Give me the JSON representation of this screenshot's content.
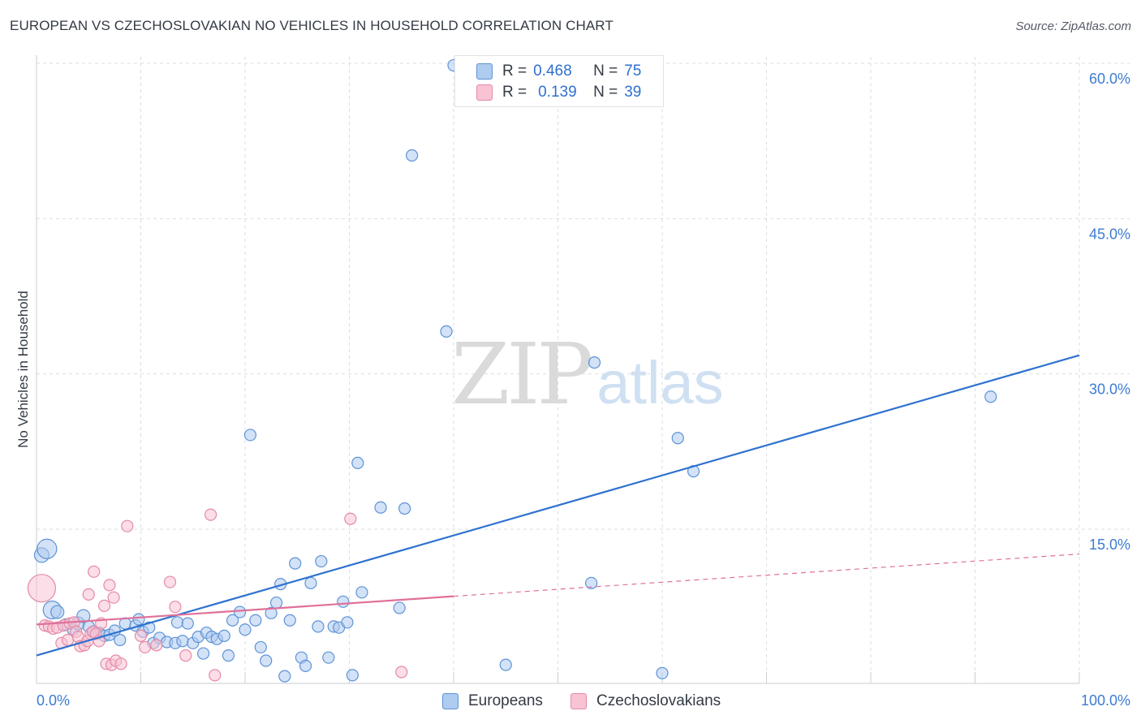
{
  "title": "EUROPEAN VS CZECHOSLOVAKIAN NO VEHICLES IN HOUSEHOLD CORRELATION CHART",
  "source": "Source: ZipAtlas.com",
  "watermark": {
    "zip": "ZIP",
    "atlas": "atlas"
  },
  "legend": {
    "series1": {
      "r_label": "R =",
      "r_value": "0.468",
      "n_label": "N =",
      "n_value": "75"
    },
    "series2": {
      "r_label": "R =",
      "r_value": "0.139",
      "n_label": "N =",
      "n_value": "39"
    }
  },
  "bottom_legend": {
    "series1": "Europeans",
    "series2": "Czechoslovakians"
  },
  "colors": {
    "blue_fill": "#aecbf0",
    "blue_stroke": "#5e93d6",
    "blue_line": "#2f72d0",
    "pink_fill": "#f8c3d3",
    "pink_stroke": "#e68aa6",
    "pink_line": "#e0709a",
    "grid": "#d9dde3",
    "tick_label": "#3d7bd4"
  },
  "chart_data": {
    "type": "scatter",
    "title": "EUROPEAN VS CZECHOSLOVAKIAN NO VEHICLES IN HOUSEHOLD CORRELATION CHART",
    "xlabel": "",
    "ylabel": "No Vehicles in Household",
    "xlim": [
      0,
      100
    ],
    "ylim": [
      0,
      63
    ],
    "x_tick_labels": [
      "0.0%",
      "100.0%"
    ],
    "y_ticks": [
      15,
      30,
      45,
      60
    ],
    "y_tick_labels": [
      "15.0%",
      "30.0%",
      "45.0%",
      "60.0%"
    ],
    "x_grid_ticks": [
      10,
      20,
      30,
      40,
      50,
      60,
      70,
      80,
      90,
      100
    ],
    "series": [
      {
        "name": "Europeans",
        "r": 0.468,
        "n": 75,
        "trend": {
          "x0": 0,
          "y0": 2.8,
          "x1": 100,
          "y1": 31.8,
          "dashed_from": null
        },
        "points": [
          [
            0.5,
            12.5,
            18
          ],
          [
            1.0,
            13.1,
            24
          ],
          [
            1.5,
            7.2,
            22
          ],
          [
            2.0,
            7.0,
            16
          ],
          [
            2.8,
            5.8,
            14
          ],
          [
            3.5,
            5.3,
            14
          ],
          [
            4.0,
            5.9,
            16
          ],
          [
            4.5,
            6.6,
            16
          ],
          [
            5.0,
            5.6,
            14
          ],
          [
            5.5,
            5.1,
            14
          ],
          [
            6.0,
            5.0,
            14
          ],
          [
            6.5,
            4.7,
            14
          ],
          [
            7.0,
            4.8,
            14
          ],
          [
            7.5,
            5.2,
            14
          ],
          [
            8.0,
            4.3,
            14
          ],
          [
            8.5,
            5.9,
            14
          ],
          [
            9.5,
            5.7,
            14
          ],
          [
            9.8,
            6.3,
            14
          ],
          [
            10.2,
            5.1,
            14
          ],
          [
            10.8,
            5.5,
            14
          ],
          [
            11.2,
            4.0,
            14
          ],
          [
            11.8,
            4.5,
            14
          ],
          [
            12.5,
            4.1,
            14
          ],
          [
            13.3,
            4.0,
            14
          ],
          [
            13.5,
            6.0,
            14
          ],
          [
            14.0,
            4.2,
            14
          ],
          [
            14.5,
            5.9,
            14
          ],
          [
            15.0,
            4.0,
            14
          ],
          [
            15.5,
            4.6,
            14
          ],
          [
            16.0,
            3.0,
            14
          ],
          [
            16.3,
            5.0,
            14
          ],
          [
            16.8,
            4.6,
            14
          ],
          [
            17.3,
            4.4,
            14
          ],
          [
            18.0,
            4.7,
            14
          ],
          [
            18.4,
            2.8,
            14
          ],
          [
            18.8,
            6.2,
            14
          ],
          [
            19.5,
            7.0,
            14
          ],
          [
            20.0,
            5.3,
            14
          ],
          [
            20.5,
            24.1,
            14
          ],
          [
            21.0,
            6.2,
            14
          ],
          [
            21.5,
            3.6,
            14
          ],
          [
            22.0,
            2.3,
            14
          ],
          [
            22.5,
            6.9,
            14
          ],
          [
            23.0,
            7.9,
            14
          ],
          [
            23.4,
            9.7,
            14
          ],
          [
            23.8,
            0.8,
            14
          ],
          [
            24.3,
            6.2,
            14
          ],
          [
            24.8,
            11.7,
            14
          ],
          [
            25.4,
            2.6,
            14
          ],
          [
            25.8,
            1.8,
            14
          ],
          [
            26.3,
            9.8,
            14
          ],
          [
            27.0,
            5.6,
            14
          ],
          [
            27.3,
            11.9,
            14
          ],
          [
            28.0,
            2.6,
            14
          ],
          [
            28.5,
            5.6,
            14
          ],
          [
            29.0,
            5.5,
            14
          ],
          [
            29.4,
            8.0,
            14
          ],
          [
            29.8,
            6.0,
            14
          ],
          [
            30.3,
            0.9,
            14
          ],
          [
            30.8,
            21.4,
            14
          ],
          [
            31.2,
            8.9,
            14
          ],
          [
            33.0,
            17.1,
            14
          ],
          [
            34.8,
            7.4,
            14
          ],
          [
            35.3,
            17.0,
            14
          ],
          [
            36.0,
            51.1,
            14
          ],
          [
            39.3,
            34.1,
            14
          ],
          [
            40.0,
            59.8,
            14
          ],
          [
            45.0,
            1.9,
            14
          ],
          [
            53.2,
            9.8,
            14
          ],
          [
            53.5,
            31.1,
            14
          ],
          [
            60.0,
            1.1,
            14
          ],
          [
            61.5,
            23.8,
            14
          ],
          [
            63.0,
            20.6,
            14
          ],
          [
            91.5,
            27.8,
            14
          ]
        ]
      },
      {
        "name": "Czechoslovakians",
        "r": 0.139,
        "n": 39,
        "trend": {
          "x0": 0,
          "y0": 5.8,
          "x1": 100,
          "y1": 12.6,
          "dashed_from": 40
        },
        "points": [
          [
            0.5,
            9.3,
            34
          ],
          [
            0.8,
            5.7,
            14
          ],
          [
            1.2,
            5.6,
            14
          ],
          [
            1.6,
            5.4,
            14
          ],
          [
            2.0,
            5.5,
            14
          ],
          [
            2.4,
            4.0,
            14
          ],
          [
            2.6,
            5.7,
            14
          ],
          [
            3.0,
            4.3,
            14
          ],
          [
            3.2,
            5.9,
            14
          ],
          [
            3.6,
            6.0,
            14
          ],
          [
            3.8,
            5.1,
            14
          ],
          [
            4.0,
            4.6,
            14
          ],
          [
            4.2,
            3.7,
            14
          ],
          [
            4.6,
            3.8,
            14
          ],
          [
            4.9,
            4.2,
            14
          ],
          [
            5.0,
            8.7,
            14
          ],
          [
            5.2,
            4.9,
            14
          ],
          [
            5.4,
            5.1,
            14
          ],
          [
            5.5,
            10.9,
            14
          ],
          [
            5.7,
            4.9,
            14
          ],
          [
            6.0,
            4.2,
            14
          ],
          [
            6.2,
            5.9,
            14
          ],
          [
            6.5,
            7.6,
            14
          ],
          [
            6.7,
            2.0,
            14
          ],
          [
            7.0,
            9.6,
            14
          ],
          [
            7.2,
            1.9,
            14
          ],
          [
            7.4,
            8.4,
            14
          ],
          [
            7.6,
            2.3,
            14
          ],
          [
            8.1,
            2.0,
            14
          ],
          [
            8.7,
            15.3,
            14
          ],
          [
            10.0,
            4.7,
            14
          ],
          [
            10.4,
            3.6,
            14
          ],
          [
            11.5,
            3.8,
            14
          ],
          [
            12.8,
            9.9,
            14
          ],
          [
            13.3,
            7.5,
            14
          ],
          [
            14.3,
            2.8,
            14
          ],
          [
            16.7,
            16.4,
            14
          ],
          [
            17.1,
            0.9,
            14
          ],
          [
            30.1,
            16.0,
            14
          ],
          [
            35.0,
            1.2,
            14
          ]
        ]
      }
    ]
  }
}
